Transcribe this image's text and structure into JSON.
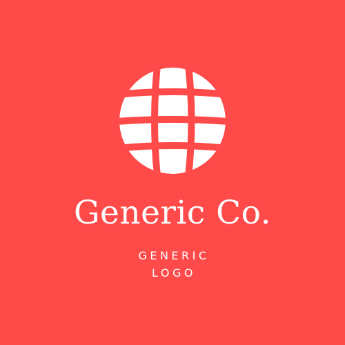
{
  "logo": {
    "brand_name": "Generic Co.",
    "tagline_lines": [
      "GENERIC",
      "LOGO"
    ],
    "icon": "globe-icon"
  },
  "colors": {
    "background": "#ff4a4a",
    "foreground": "#ffffff"
  }
}
